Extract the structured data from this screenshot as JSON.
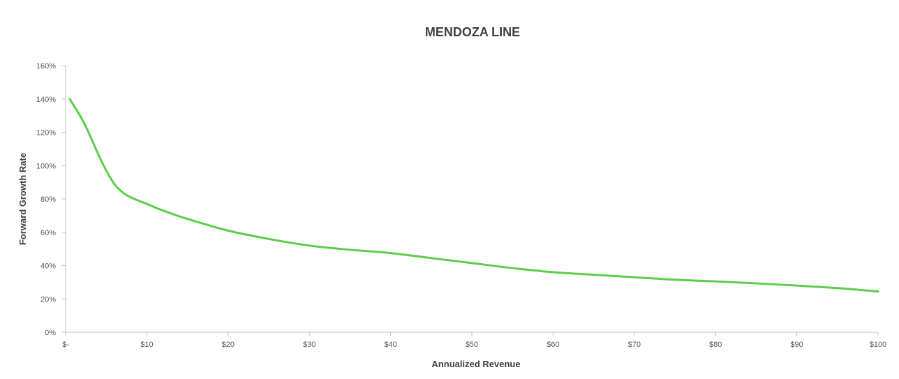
{
  "chart_data": {
    "type": "line",
    "title": "MENDOZA LINE",
    "xlabel": "Annualized Revenue",
    "ylabel": "Forward Growth Rate",
    "xlim": [
      0,
      100
    ],
    "ylim": [
      0,
      1.6
    ],
    "x_ticks": [
      {
        "value": 0,
        "label": "$-"
      },
      {
        "value": 10,
        "label": "$10"
      },
      {
        "value": 20,
        "label": "$20"
      },
      {
        "value": 30,
        "label": "$30"
      },
      {
        "value": 40,
        "label": "$40"
      },
      {
        "value": 50,
        "label": "$50"
      },
      {
        "value": 60,
        "label": "$60"
      },
      {
        "value": 70,
        "label": "$70"
      },
      {
        "value": 80,
        "label": "$80"
      },
      {
        "value": 90,
        "label": "$90"
      },
      {
        "value": 100,
        "label": "$100"
      }
    ],
    "y_ticks": [
      {
        "value": 0,
        "label": "0%"
      },
      {
        "value": 0.2,
        "label": "20%"
      },
      {
        "value": 0.4,
        "label": "40%"
      },
      {
        "value": 0.6,
        "label": "60%"
      },
      {
        "value": 0.8,
        "label": "80%"
      },
      {
        "value": 1.0,
        "label": "100%"
      },
      {
        "value": 1.2,
        "label": "120%"
      },
      {
        "value": 1.4,
        "label": "140%"
      },
      {
        "value": 1.6,
        "label": "160%"
      }
    ],
    "grid": false,
    "legend": "none",
    "series": [
      {
        "color": "#5ccd4a",
        "x": [
          0.5,
          2,
          3,
          4,
          5,
          6,
          7,
          8,
          10,
          12,
          15,
          20,
          25,
          30,
          35,
          40,
          45,
          50,
          55,
          60,
          65,
          70,
          75,
          80,
          85,
          90,
          95,
          100
        ],
        "y": [
          1.4,
          1.28,
          1.18,
          1.07,
          0.97,
          0.89,
          0.84,
          0.81,
          0.77,
          0.73,
          0.68,
          0.61,
          0.56,
          0.52,
          0.495,
          0.475,
          0.445,
          0.415,
          0.385,
          0.36,
          0.345,
          0.33,
          0.315,
          0.305,
          0.293,
          0.28,
          0.265,
          0.245
        ]
      }
    ]
  }
}
